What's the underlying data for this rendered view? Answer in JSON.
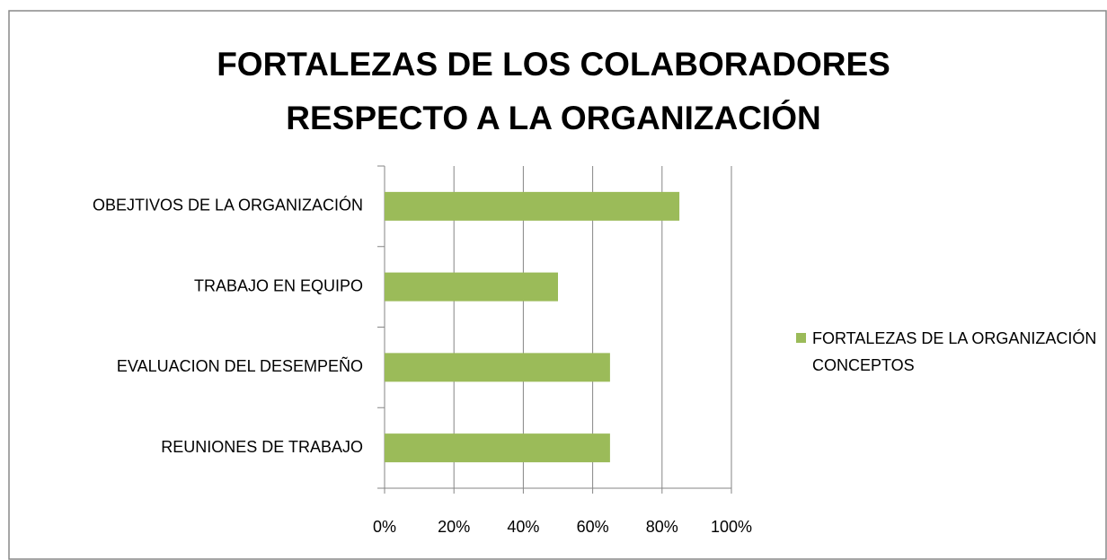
{
  "chart_data": {
    "type": "bar",
    "orientation": "horizontal",
    "title": "FORTALEZAS DE LOS COLABORADORES RESPECTO A LA ORGANIZACIÓN",
    "categories": [
      "OBEJTIVOS DE LA ORGANIZACIÓN",
      "TRABAJO EN EQUIPO",
      "EVALUACION DEL DESEMPEÑO",
      "REUNIONES DE TRABAJO"
    ],
    "series": [
      {
        "name": "FORTALEZAS DE LA ORGANIZACIÓN CONCEPTOS",
        "color": "#9bbb59",
        "values": [
          85,
          50,
          65,
          65
        ]
      }
    ],
    "xlim": [
      0,
      100
    ],
    "xticks": [
      {
        "value": 0,
        "label": "0%"
      },
      {
        "value": 20,
        "label": "20%"
      },
      {
        "value": 40,
        "label": "40%"
      },
      {
        "value": 60,
        "label": "60%"
      },
      {
        "value": 80,
        "label": "80%"
      },
      {
        "value": 100,
        "label": "100%"
      }
    ],
    "grid": true,
    "legend": "right"
  }
}
